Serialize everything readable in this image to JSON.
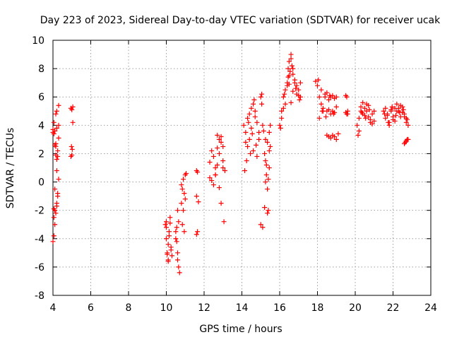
{
  "chart_data": {
    "type": "scatter",
    "title": "Day 223 of 2023, Sidereal Day-to-day VTEC variation (SDTVAR) for receiver ucak",
    "xlabel": "GPS time / hours",
    "ylabel": "SDTVAR / TECUs",
    "xlim": [
      4,
      24
    ],
    "ylim": [
      -8,
      10
    ],
    "xticks": [
      "4",
      "6",
      "8",
      "10",
      "12",
      "14",
      "16",
      "18",
      "20",
      "22",
      "24"
    ],
    "yticks": [
      "-8",
      "-6",
      "-4",
      "-2",
      "0",
      "2",
      "4",
      "6",
      "8",
      "10"
    ],
    "grid": true,
    "marker": "+",
    "series": [
      {
        "name": "SDTVAR",
        "color": "#ff0000",
        "x": [
          4.0,
          4.05,
          4.1,
          4.15,
          4.2,
          4.25,
          4.3,
          4.05,
          4.1,
          4.2,
          4.25,
          4.3,
          4.15,
          4.2,
          4.1,
          4.0,
          4.05,
          4.15,
          4.25,
          4.2,
          4.1,
          4.3,
          4.15,
          4.25,
          4.05,
          4.2,
          4.3,
          4.1,
          4.0,
          4.05,
          4.15,
          4.2,
          4.95,
          5.0,
          5.05,
          4.98,
          5.02,
          5.0,
          4.95,
          5.05,
          9.95,
          10.0,
          10.05,
          10.1,
          10.15,
          10.2,
          10.25,
          10.3,
          10.0,
          10.1,
          10.2,
          10.05,
          10.15,
          10.25,
          10.0,
          10.1,
          10.5,
          10.55,
          10.6,
          10.65,
          10.7,
          10.5,
          10.6,
          10.55,
          10.65,
          10.6,
          10.8,
          10.85,
          10.9,
          10.95,
          11.0,
          11.05,
          10.9,
          10.85,
          10.95,
          11.0,
          10.8,
          11.6,
          11.65,
          11.6,
          11.7,
          11.65,
          11.6,
          12.3,
          12.4,
          12.5,
          12.6,
          12.7,
          12.8,
          12.9,
          13.0,
          13.1,
          12.4,
          12.6,
          12.8,
          13.0,
          12.5,
          12.7,
          12.9,
          12.3,
          12.6,
          12.8,
          13.05,
          12.9,
          12.7,
          13.0,
          14.1,
          14.2,
          14.3,
          14.4,
          14.5,
          14.6,
          14.7,
          14.8,
          14.9,
          14.2,
          14.4,
          14.6,
          14.8,
          14.3,
          14.5,
          14.7,
          14.9,
          14.15,
          14.35,
          14.55,
          14.75,
          14.25,
          14.45,
          14.65,
          15.0,
          15.05,
          15.1,
          15.15,
          15.0,
          15.1,
          15.05,
          15.2,
          15.25,
          15.3,
          15.35,
          15.4,
          15.45,
          15.5,
          15.25,
          15.35,
          15.45,
          15.3,
          15.4,
          15.2,
          15.5,
          15.35,
          15.45,
          15.25,
          16.0,
          16.1,
          16.2,
          16.3,
          16.4,
          16.5,
          16.6,
          16.7,
          16.8,
          16.9,
          17.0,
          17.1,
          16.1,
          16.3,
          16.5,
          16.7,
          16.9,
          17.1,
          16.2,
          16.4,
          16.6,
          16.8,
          17.0,
          16.05,
          16.25,
          16.45,
          16.65,
          16.85,
          17.05,
          16.5,
          16.6,
          16.55,
          16.45,
          16.7,
          17.9,
          18.0,
          18.1,
          18.2,
          18.3,
          18.4,
          18.5,
          18.6,
          18.7,
          18.8,
          18.9,
          19.0,
          18.1,
          18.3,
          18.5,
          18.7,
          18.9,
          18.2,
          18.4,
          18.6,
          18.8,
          19.0,
          18.05,
          18.25,
          18.45,
          18.65,
          18.85,
          18.5,
          18.6,
          18.7,
          18.8,
          18.9,
          19.0,
          19.1,
          19.5,
          19.55,
          19.6,
          19.5,
          19.6,
          19.55,
          20.1,
          20.2,
          20.3,
          20.4,
          20.5,
          20.6,
          20.7,
          20.8,
          20.9,
          21.0,
          20.2,
          20.4,
          20.6,
          20.8,
          21.0,
          20.3,
          20.5,
          20.7,
          20.9,
          20.15,
          20.35,
          20.55,
          20.75,
          21.5,
          21.6,
          21.7,
          21.8,
          21.9,
          22.0,
          22.1,
          22.2,
          22.3,
          22.4,
          22.5,
          22.6,
          22.7,
          22.8,
          21.6,
          21.8,
          22.0,
          22.2,
          22.4,
          22.6,
          21.7,
          21.9,
          22.1,
          22.3,
          22.5,
          22.7,
          21.55,
          21.75,
          21.95,
          22.15,
          22.35,
          22.55,
          22.75,
          22.6,
          22.65,
          22.7,
          22.75,
          22.8
        ],
        "y": [
          -4.2,
          -3.8,
          -3.0,
          -2.2,
          -1.5,
          -0.8,
          0.2,
          -1.9,
          -2.0,
          1.6,
          2.2,
          5.4,
          4.8,
          5.0,
          3.6,
          3.5,
          3.4,
          2.7,
          1.8,
          0.8,
          -0.5,
          4.0,
          2.5,
          -1.0,
          -2.5,
          3.8,
          3.1,
          2.6,
          3.7,
          4.2,
          1.9,
          -1.7,
          5.2,
          5.1,
          5.3,
          2.5,
          2.3,
          1.9,
          1.8,
          4.2,
          -3.0,
          -4.0,
          -5.0,
          -5.5,
          -3.5,
          -2.5,
          -4.8,
          -5.2,
          -3.2,
          -4.4,
          -2.9,
          -5.1,
          -3.8,
          -4.6,
          -2.8,
          -5.6,
          -3.5,
          -4.2,
          -5.0,
          -6.0,
          -6.4,
          -4.0,
          -5.5,
          -3.2,
          -2.8,
          -2.0,
          -1.5,
          -0.5,
          0.2,
          -0.8,
          0.5,
          0.6,
          -2.0,
          -3.0,
          -3.5,
          -1.2,
          -0.2,
          0.8,
          0.7,
          -1.0,
          -1.4,
          -3.5,
          -3.7,
          0.3,
          0.1,
          -0.2,
          0.5,
          1.2,
          2.0,
          2.8,
          1.5,
          0.8,
          2.2,
          1.0,
          3.0,
          2.5,
          1.8,
          2.4,
          3.2,
          1.4,
          0.5,
          -0.4,
          -2.8,
          -1.5,
          3.3,
          1.0,
          4.0,
          3.5,
          4.5,
          4.8,
          5.2,
          5.5,
          5.0,
          4.2,
          3.5,
          2.8,
          3.0,
          2.2,
          1.8,
          2.5,
          3.8,
          4.6,
          3.0,
          0.8,
          4.2,
          3.4,
          2.6,
          1.5,
          2.0,
          5.8,
          6.0,
          5.5,
          4.0,
          3.6,
          -3.0,
          -3.2,
          6.2,
          2.0,
          1.5,
          0.5,
          -0.5,
          -2.0,
          1.0,
          2.5,
          0.0,
          2.8,
          3.5,
          1.2,
          0.2,
          -1.8,
          4.0,
          -2.2,
          2.2,
          3.0,
          4.0,
          5.0,
          6.0,
          6.5,
          7.0,
          8.5,
          9.0,
          8.0,
          7.2,
          6.8,
          6.5,
          7.0,
          4.5,
          5.5,
          7.5,
          7.6,
          6.2,
          6.0,
          5.2,
          6.8,
          8.7,
          7.0,
          6.1,
          3.8,
          6.2,
          7.4,
          8.2,
          6.6,
          5.8,
          6.9,
          5.6,
          7.8,
          8.0,
          6.4,
          7.1,
          6.8,
          6.0,
          5.5,
          5.0,
          6.2,
          6.3,
          5.8,
          6.0,
          6.1,
          5.9,
          6.0,
          4.5,
          5.2,
          5.0,
          4.8,
          4.9,
          6.5,
          6.0,
          5.1,
          5.0,
          5.3,
          7.2,
          5.0,
          4.6,
          6.1,
          4.8,
          3.3,
          3.2,
          3.1,
          3.3,
          3.2,
          3.0,
          3.4,
          6.1,
          6.0,
          4.8,
          4.9,
          5.0,
          4.8,
          4.0,
          4.5,
          5.0,
          4.8,
          5.2,
          5.0,
          4.6,
          4.4,
          4.8,
          5.0,
          3.6,
          5.6,
          5.5,
          4.2,
          4.3,
          5.3,
          4.7,
          5.4,
          4.1,
          3.3,
          4.9,
          4.5,
          5.1,
          5.0,
          4.5,
          4.8,
          4.2,
          5.0,
          4.4,
          5.2,
          5.5,
          5.0,
          4.6,
          5.3,
          4.8,
          4.2,
          4.0,
          5.2,
          4.0,
          4.6,
          5.0,
          5.4,
          4.6,
          4.7,
          5.1,
          4.3,
          5.2,
          4.9,
          4.5,
          4.8,
          4.2,
          5.3,
          4.7,
          4.9,
          5.1,
          4.4,
          2.7,
          2.8,
          2.9,
          3.0,
          3.0
        ]
      }
    ]
  }
}
